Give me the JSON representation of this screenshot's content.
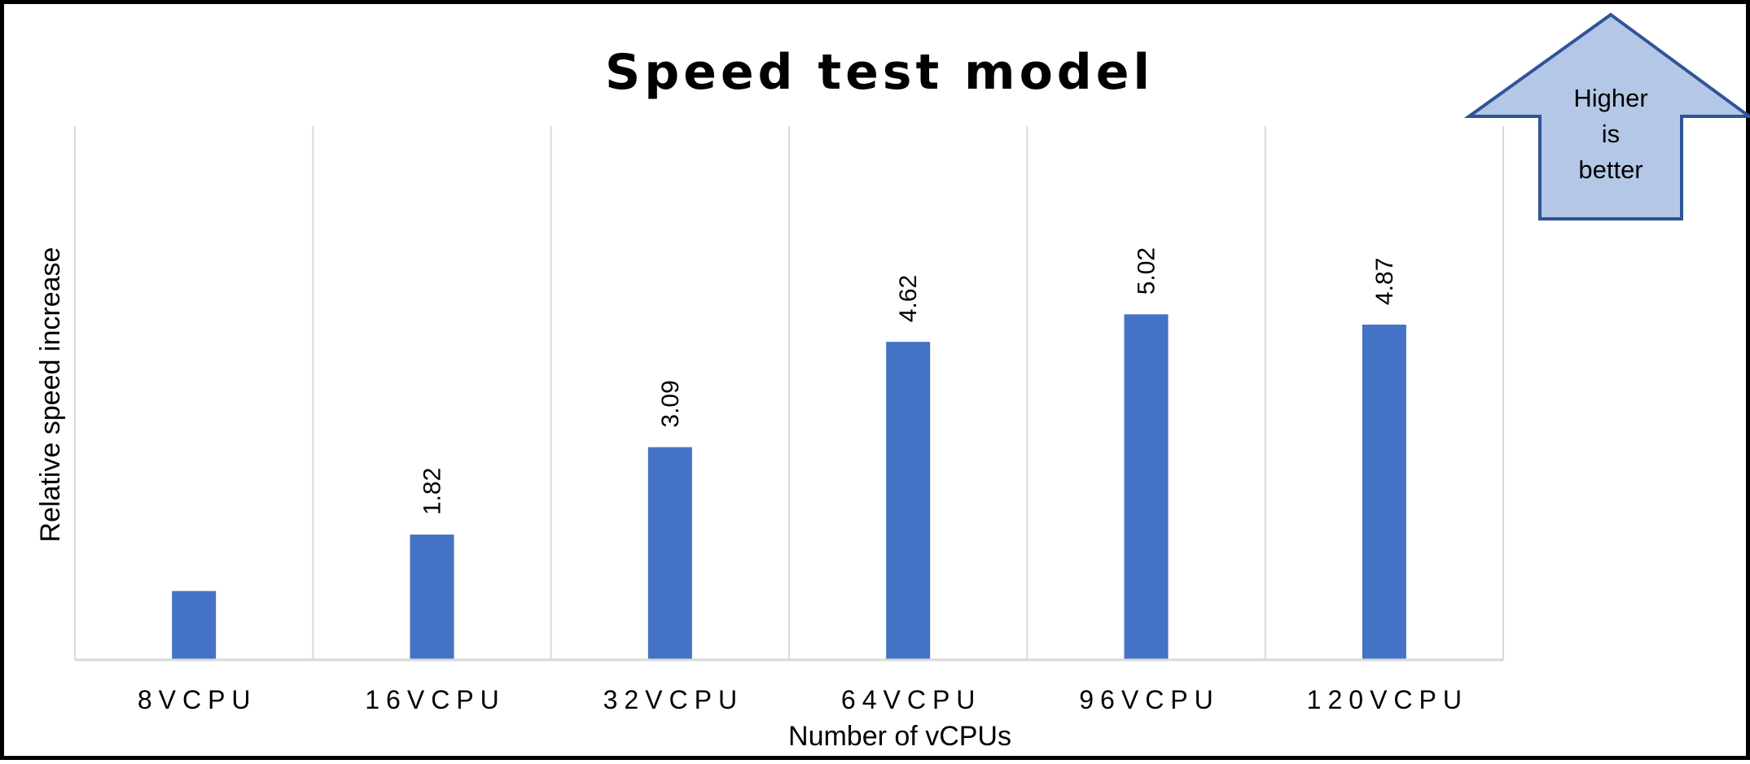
{
  "chart_data": {
    "type": "bar",
    "title": "Speed test model",
    "xlabel": "Number of vCPUs",
    "ylabel": "Relative speed increase",
    "categories": [
      "8VCPU",
      "16VCPU",
      "32VCPU",
      "64VCPU",
      "96VCPU",
      "120VCPU"
    ],
    "values": [
      1.0,
      1.82,
      3.09,
      4.62,
      5.02,
      4.87
    ],
    "data_labels": [
      "",
      "1.82",
      "3.09",
      "4.62",
      "5.02",
      "4.87"
    ],
    "ylim": [
      0,
      6
    ],
    "grid": "vertical",
    "legend": "none",
    "colors": {
      "bar": "#4472C4",
      "grid": "#D9D9D9",
      "axis": "#D9D9D9",
      "arrow_fill": "#B4C7E7",
      "arrow_stroke": "#2F5597"
    }
  },
  "annotation": {
    "lines": [
      "Higher",
      "is",
      "better"
    ]
  }
}
